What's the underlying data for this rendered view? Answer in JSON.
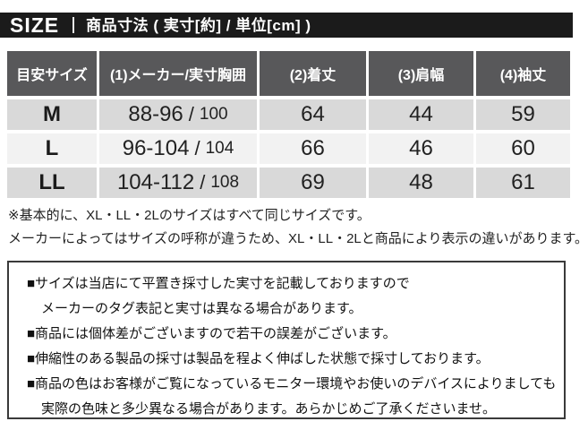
{
  "colors": {
    "title_bar_bg": "#1b1b1b",
    "header_cell_bg": "#58585a",
    "row_dark_bg": "#d9d9d9",
    "row_light_bg": "#f2f2f2",
    "text_dark": "#222222",
    "box_border": "#3a3a3a"
  },
  "title_bar": {
    "size_label": "SIZE",
    "title": "商品寸法 ( 実寸[約] / 単位[cm] )"
  },
  "table": {
    "columns": [
      "目安サイズ",
      "(1)メーカー/実寸胸囲",
      "(2)着丈",
      "(3)肩幅",
      "(4)袖丈"
    ],
    "separator": "/",
    "rows": [
      {
        "size": "M",
        "maker_chest": "88-96",
        "actual_chest": "100",
        "length": "64",
        "shoulder": "44",
        "sleeve": "59"
      },
      {
        "size": "L",
        "maker_chest": "96-104",
        "actual_chest": "104",
        "length": "66",
        "shoulder": "46",
        "sleeve": "60"
      },
      {
        "size": "LL",
        "maker_chest": "104-112",
        "actual_chest": "108",
        "length": "69",
        "shoulder": "48",
        "sleeve": "61"
      }
    ]
  },
  "notes": {
    "line1": "※基本的に、XL・LL・2Lのサイズはすべて同じサイズです。",
    "line2": "メーカーによってはサイズの呼称が違うため、XL・LL・2Lと商品により表示の違いがあります。"
  },
  "disclaimer": {
    "lines": [
      "■サイズは当店にて平置き採寸した実寸を記載しておりますので",
      "メーカーのタグ表記と実寸は異なる場合があります。",
      "■商品には個体差がございますので若干の誤差がございます。",
      "■伸縮性のある製品の採寸は製品を程よく伸ばした状態で採寸しております。",
      "■商品の色はお客様がご覧になっているモニター環境やお使いのデバイスによりましても",
      "実際の色味と多少異なる場合があります。あらかじめご了承くださいませ。"
    ]
  }
}
